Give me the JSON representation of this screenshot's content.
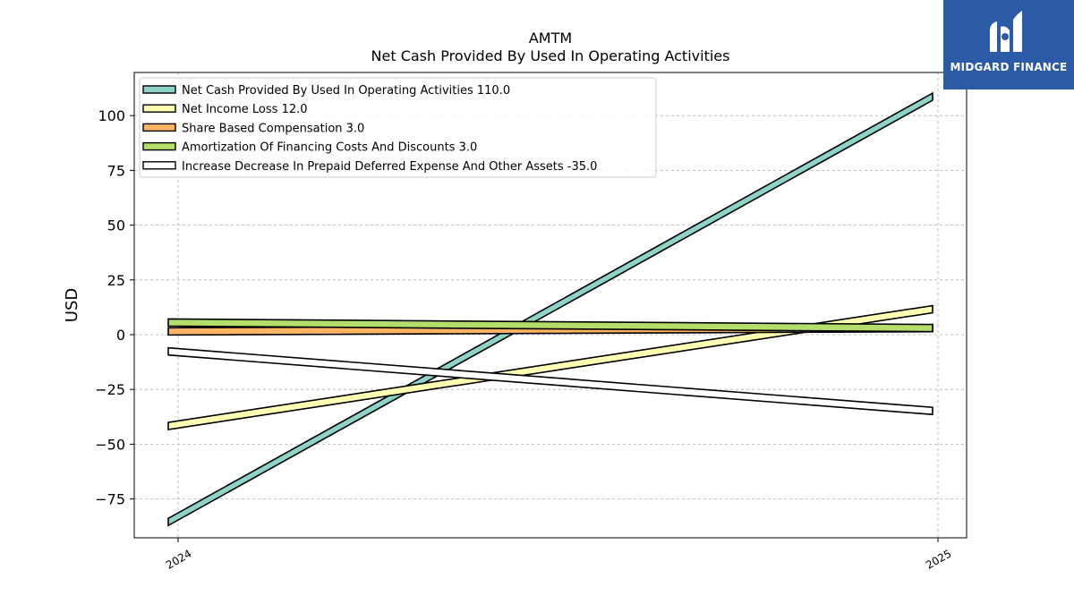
{
  "chart_data": {
    "type": "line",
    "title": "AMTM",
    "subtitle": "Net Cash Provided By Used In Operating Activities",
    "xlabel": "",
    "ylabel": "USD",
    "categories": [
      "2024",
      "2025"
    ],
    "ylim": [
      -93,
      120
    ],
    "yticks": [
      -75,
      -50,
      -25,
      0,
      25,
      50,
      75,
      100
    ],
    "ytick_labels": [
      "−75",
      "−50",
      "−25",
      "0",
      "25",
      "50",
      "75",
      "100"
    ],
    "grid": true,
    "legend_position": "top-left",
    "series": [
      {
        "name": "Net Cash Provided By Used In Operating Activities",
        "legend_label": "Net Cash Provided By Used In Operating Activities  110.0",
        "values": [
          -83,
          110
        ],
        "color": "#8dd3c7"
      },
      {
        "name": "Net Income Loss",
        "legend_label": "Net Income Loss  12.0",
        "values": [
          -41,
          12
        ],
        "color": "#ffffb3"
      },
      {
        "name": "Share Based Compensation",
        "legend_label": "Share Based Compensation  3.0",
        "values": [
          1.5,
          3
        ],
        "color": "#fdb462"
      },
      {
        "name": "Amortization Of Financing Costs And Discounts",
        "legend_label": "Amortization Of Financing Costs And Discounts  3.0",
        "values": [
          5.5,
          3
        ],
        "color": "#b3de69"
      },
      {
        "name": "Increase Decrease In Prepaid Deferred Expense And Other Assets",
        "legend_label": "Increase Decrease In Prepaid Deferred Expense And Other Assets  -35.0",
        "values": [
          -8,
          -35
        ],
        "color": "#ffffff"
      }
    ]
  },
  "brand": {
    "name": "MIDGARD FINANCE",
    "color": "#2b5aa6"
  }
}
